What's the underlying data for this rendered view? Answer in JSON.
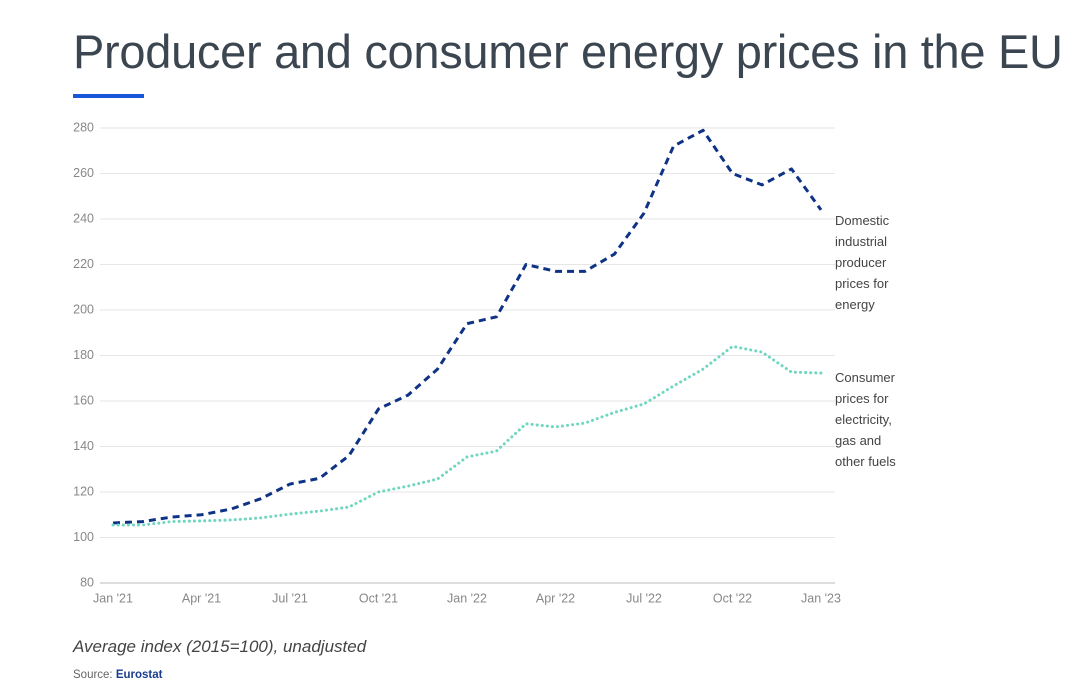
{
  "chart_data": {
    "type": "line",
    "title": "Producer and consumer energy prices in the EU",
    "note": "Average index (2015=100), unadjusted",
    "source_label": "Source:",
    "source": "Eurostat",
    "categories": [
      "Jan '21",
      null,
      null,
      "Apr '21",
      null,
      null,
      "Jul '21",
      null,
      null,
      "Oct '21",
      null,
      null,
      "Jan '22",
      null,
      null,
      "Apr '22",
      null,
      null,
      "Jul '22",
      null,
      null,
      "Oct '22",
      null,
      null,
      "Jan '23"
    ],
    "series": [
      {
        "name": "Domestic industrial producer prices for energy",
        "color": "#0e3385",
        "values": [
          106.4,
          107,
          109,
          110,
          112.5,
          117,
          123.5,
          126,
          136,
          156.5,
          162.6,
          174,
          194,
          197,
          220,
          217,
          217,
          224.6,
          242.6,
          272,
          279,
          260,
          255,
          262,
          244
        ]
      },
      {
        "name": "Consumer prices for electricity, gas and other fuels",
        "color": "#6fd6c0",
        "values": [
          105.5,
          105.5,
          107,
          107.3,
          107.7,
          108.6,
          110.3,
          111.6,
          113.4,
          120,
          122.6,
          125.7,
          135.4,
          138,
          150,
          148.6,
          150.3,
          155,
          158.7,
          166.6,
          174,
          184,
          181.5,
          172.7,
          172.3
        ]
      }
    ],
    "ylim": [
      80,
      280
    ],
    "yticks": [
      80,
      100,
      120,
      140,
      160,
      180,
      200,
      220,
      240,
      260,
      280
    ],
    "grid": true
  }
}
